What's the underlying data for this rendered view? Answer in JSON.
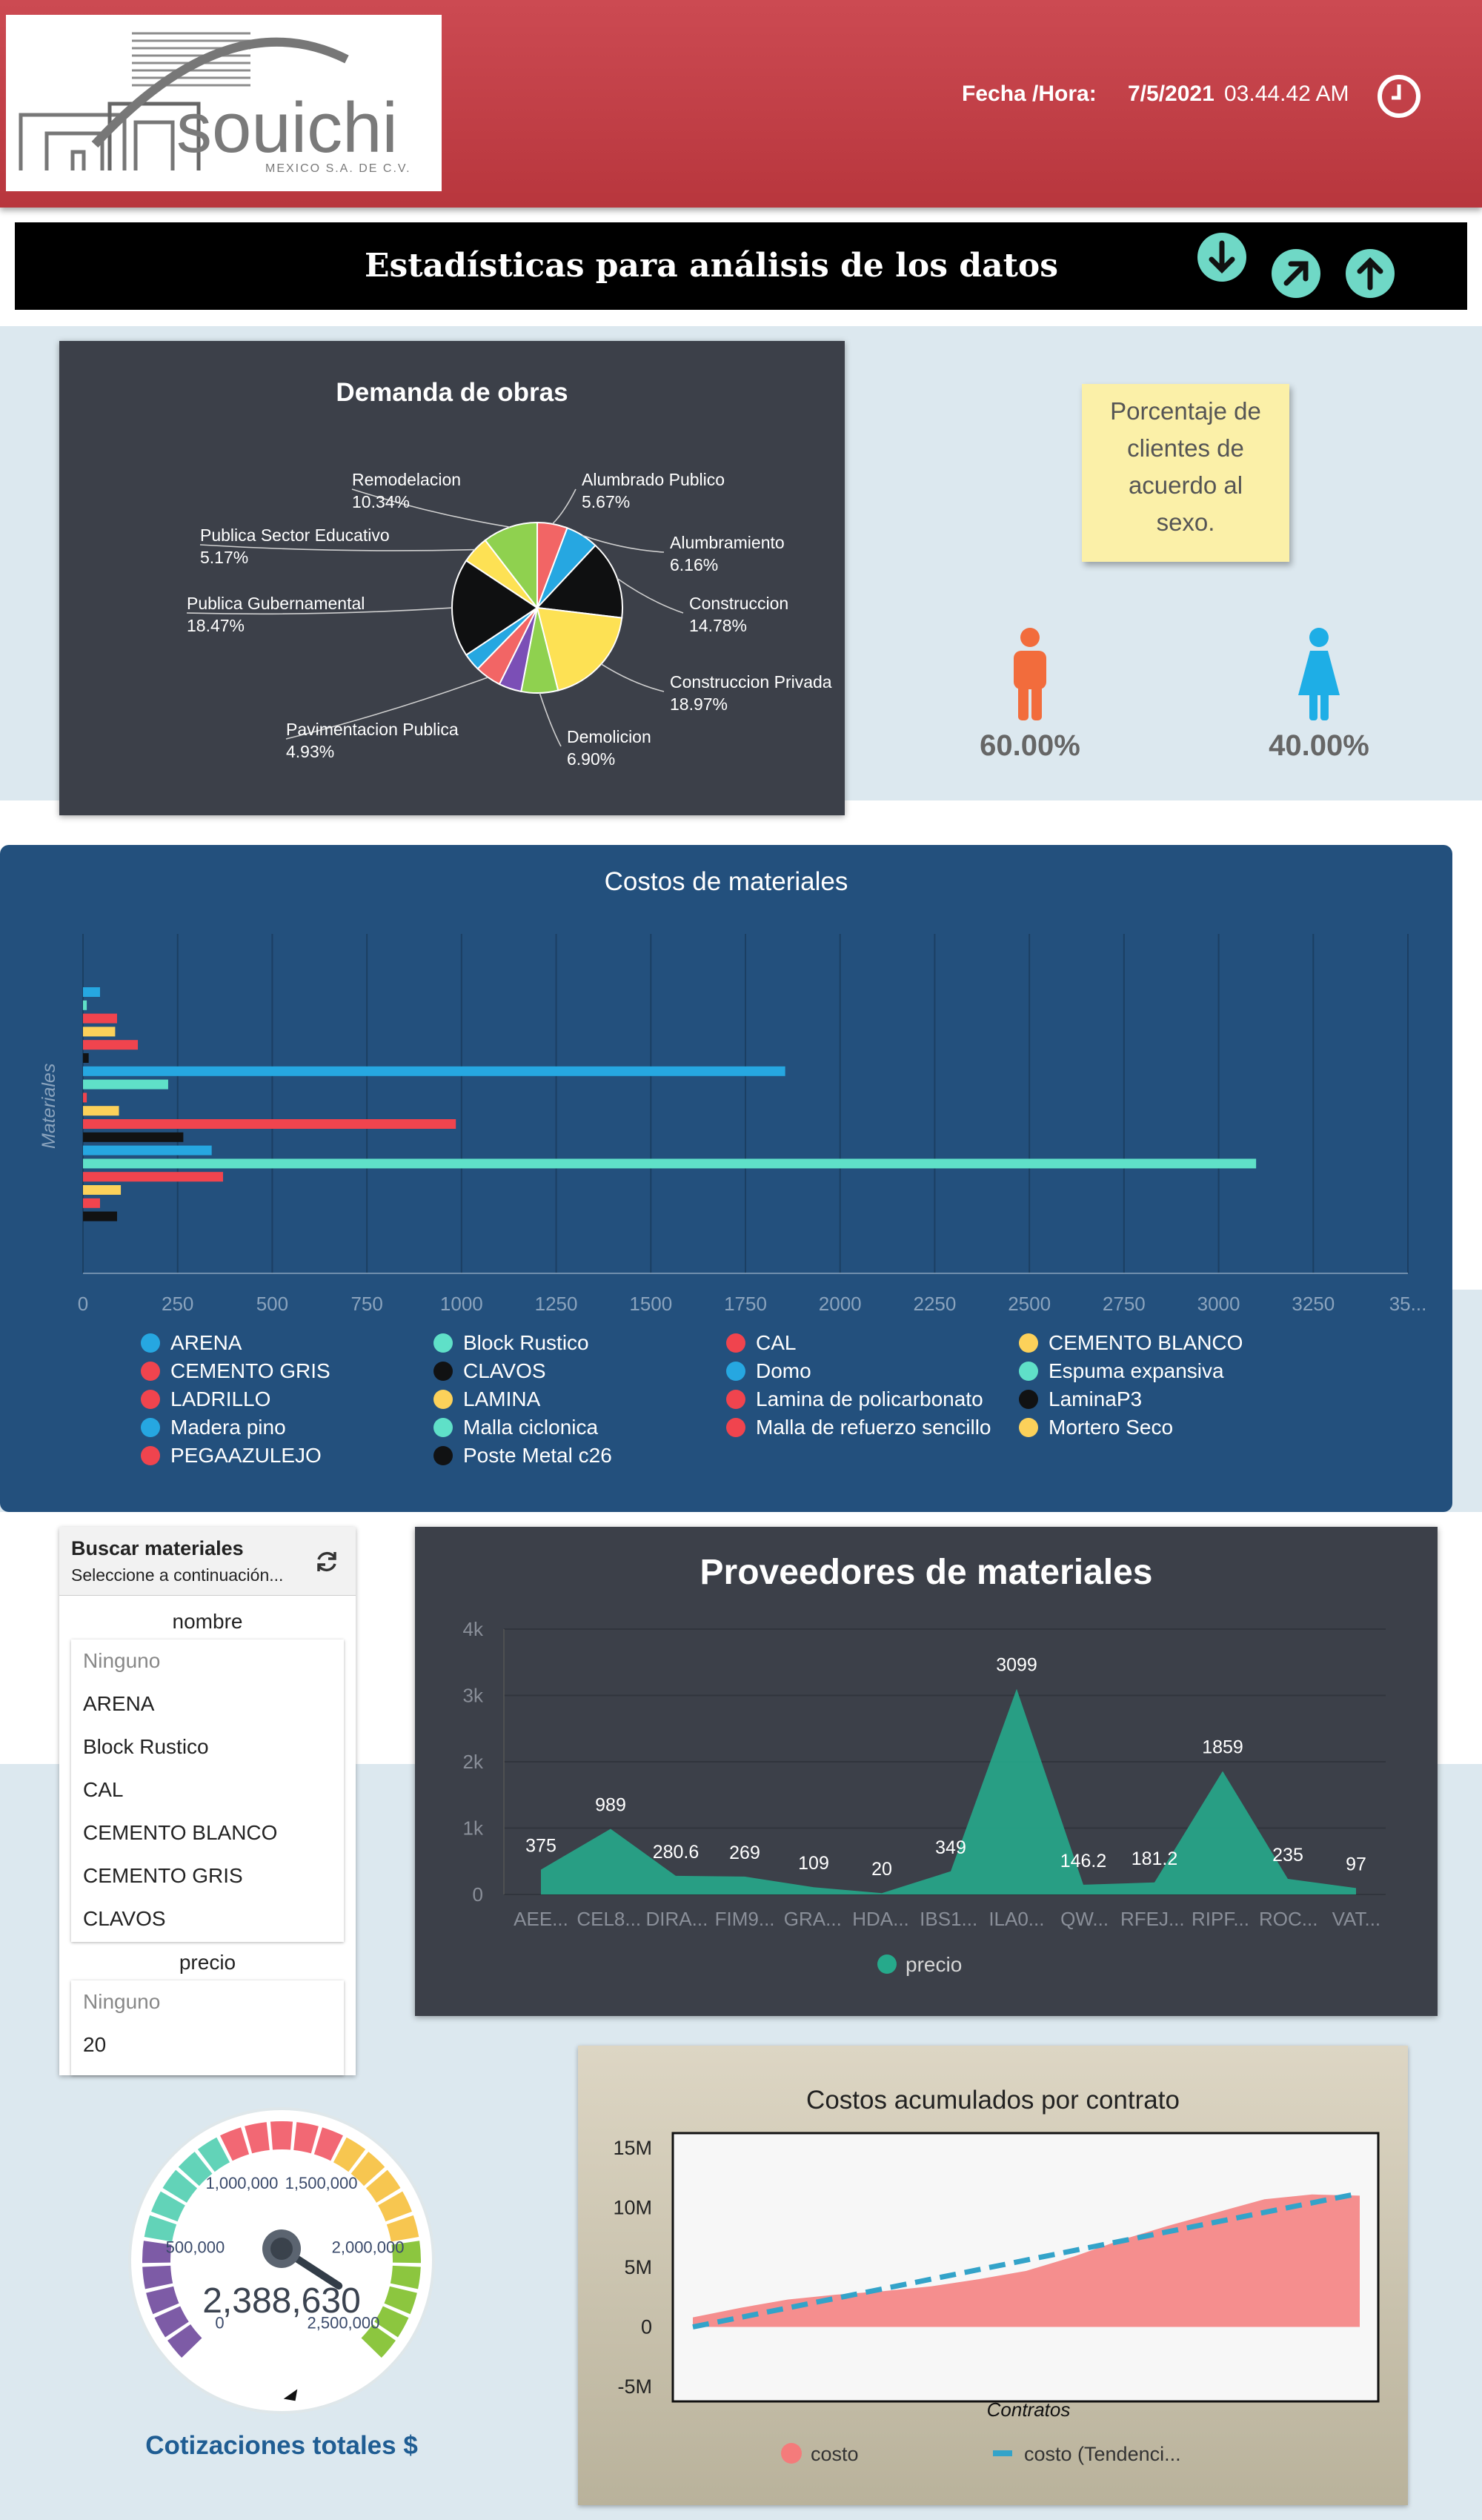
{
  "header": {
    "logo_text": "souichi",
    "logo_subtext": "MEXICO S.A. DE C.V.",
    "datetime_label": "Fecha /Hora:",
    "date": "7/5/2021",
    "time": "03.44.42 AM",
    "clock_icon": "clock-icon"
  },
  "title_bar": {
    "title": "Estadísticas para análisis de los datos",
    "buttons": [
      {
        "icon": "arrow-down-icon"
      },
      {
        "icon": "arrow-up-right-icon"
      },
      {
        "icon": "arrow-up-icon"
      }
    ]
  },
  "gender": {
    "note": "Porcentaje de clientes de acuerdo al sexo.",
    "note_lines": [
      "Porcentaje de",
      "clientes de",
      "acuerdo al",
      "sexo."
    ],
    "male_pct": "60.00%",
    "female_pct": "40.00%",
    "male_color": "#f26c3c",
    "female_color": "#1eaee6"
  },
  "search": {
    "title": "Buscar materiales",
    "subtitle": "Seleccione a continuación...",
    "refresh_icon": "refresh-icon",
    "nombre_label": "nombre",
    "nombre_items": [
      "Ninguno",
      "ARENA",
      "Block Rustico",
      "CAL",
      "CEMENTO BLANCO",
      "CEMENTO GRIS",
      "CLAVOS"
    ],
    "precio_label": "precio",
    "precio_items": [
      "Ninguno",
      "20"
    ]
  },
  "gauge": {
    "value_text": "2,388,630",
    "caption": "Cotizaciones totales $",
    "ticks": [
      "0",
      "500,000",
      "1,000,000",
      "1,500,000",
      "2,000,000",
      "2,500,000"
    ],
    "min": 0,
    "max": 2500000,
    "value": 2388630
  },
  "chart_data": [
    {
      "type": "pie",
      "title": "Demanda de obras",
      "slices": [
        {
          "label": "Alumbrado Publico",
          "pct_text": "5.67%",
          "value": 5.67,
          "color": "#f26565"
        },
        {
          "label": "Alumbramiento",
          "pct_text": "6.16%",
          "value": 6.16,
          "color": "#26a7e1"
        },
        {
          "label": "Construccion",
          "pct_text": "14.78%",
          "value": 14.78,
          "color": "#0f1011"
        },
        {
          "label": "Construccion Privada",
          "pct_text": "18.97%",
          "value": 18.97,
          "color": "#fde154"
        },
        {
          "label": "Demolicion",
          "pct_text": "6.90%",
          "value": 6.9,
          "color": "#8fd14f"
        },
        {
          "label": "",
          "pct_text": "",
          "value": 4.25,
          "color": "#7b4fb6"
        },
        {
          "label": "Pavimentacion Publica",
          "pct_text": "4.93%",
          "value": 4.93,
          "color": "#f26565"
        },
        {
          "label": "",
          "pct_text": "",
          "value": 3.33,
          "color": "#26a7e1"
        },
        {
          "label": "Publica Gubernamental",
          "pct_text": "18.47%",
          "value": 18.47,
          "color": "#0f1011"
        },
        {
          "label": "Publica Sector Educativo",
          "pct_text": "5.17%",
          "value": 5.17,
          "color": "#fde154"
        },
        {
          "label": "Remodelacion",
          "pct_text": "10.34%",
          "value": 10.34,
          "color": "#8fd14f"
        }
      ]
    },
    {
      "type": "bar",
      "orientation": "horizontal",
      "title": "Costos de materiales",
      "ylabel": "Materiales",
      "xlim": [
        0,
        3500
      ],
      "xticks": [
        "0",
        "250",
        "500",
        "750",
        "1000",
        "1250",
        "1500",
        "1750",
        "2000",
        "2250",
        "2500",
        "2750",
        "3000",
        "3250",
        "35..."
      ],
      "categories": [
        "ARENA",
        "Block Rustico",
        "CAL",
        "CEMENTO BLANCO",
        "CEMENTO GRIS",
        "CLAVOS",
        "Domo",
        "Espuma expansiva",
        "LADRILLO",
        "LAMINA",
        "Lamina de policarbonato",
        "LaminaP3",
        "Madera pino",
        "Malla ciclonica",
        "Malla de refuerzo sencillo",
        "Mortero Seco",
        "PEGAAZULEJO",
        "Poste Metal c26"
      ],
      "values": [
        45,
        10,
        90,
        85,
        145,
        15,
        1855,
        225,
        10,
        95,
        985,
        265,
        340,
        3099,
        370,
        100,
        45,
        90
      ],
      "colors": [
        "#26a7e1",
        "#5fe0c8",
        "#f0444e",
        "#fcd15a",
        "#f0444e",
        "#111213",
        "#26a7e1",
        "#5fe0c8",
        "#f0444e",
        "#fcd15a",
        "#f0444e",
        "#111213",
        "#26a7e1",
        "#5fe0c8",
        "#f0444e",
        "#fcd15a",
        "#f0444e",
        "#111213"
      ]
    },
    {
      "type": "area",
      "title": "Proveedores de materiales",
      "series_name": "precio",
      "color": "#26a98b",
      "ylim": [
        0,
        4000
      ],
      "yticks": [
        "0",
        "1k",
        "2k",
        "3k",
        "4k"
      ],
      "categories": [
        "AEE...",
        "",
        "CEL8...",
        "",
        "DIRA...",
        "",
        "FIM9...",
        "",
        "GRA...",
        "",
        "HDA...",
        "",
        "IBS1...",
        "",
        "ILA0...",
        "",
        "QW...",
        "",
        "RFEJ...",
        "",
        "RIPF...",
        "",
        "ROC...",
        "",
        "VAT..."
      ],
      "values": [
        375,
        989,
        280.6,
        269,
        109,
        20,
        349,
        3099,
        146.2,
        181.2,
        1859,
        235,
        97
      ],
      "labels": [
        "375",
        "989",
        "280.6",
        "269",
        "109",
        "20",
        "349",
        "3099",
        "146.2",
        "181.2",
        "1859",
        "235",
        "97"
      ]
    },
    {
      "type": "area",
      "title": "Costos acumulados por contrato",
      "xlabel": "Contratos",
      "ylim": [
        -5000000,
        15000000
      ],
      "yticks": [
        "15M",
        "10M",
        "5M",
        "0",
        "-5M"
      ],
      "series": [
        {
          "name": "costo",
          "color": "#f47b7b",
          "values": [
            0.8,
            1.6,
            2.3,
            2.7,
            3.0,
            3.4,
            4.0,
            4.7,
            5.9,
            7.3,
            8.5,
            9.6,
            10.7,
            11.1,
            11.0
          ]
        },
        {
          "name": "costo (Tendenci...",
          "color": "#33a3c9",
          "values": [
            0.0,
            0.8,
            1.6,
            2.4,
            3.2,
            4.0,
            4.8,
            5.6,
            6.4,
            7.2,
            8.0,
            8.8,
            9.6,
            10.4,
            11.2
          ]
        }
      ]
    }
  ]
}
